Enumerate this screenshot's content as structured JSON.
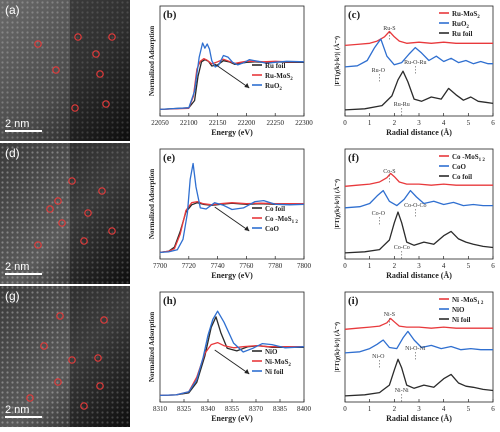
{
  "rows": [
    {
      "stem": {
        "label": "(a)",
        "scale": "2 nm"
      },
      "xanes": {
        "label": "(b)",
        "xlabel": "Energy (eV)",
        "ylabel": "Normalized Adsorption",
        "xticks": [
          "22050",
          "22100",
          "22150",
          "22200",
          "22250",
          "22300"
        ],
        "legend": [
          "Ru foil",
          "Ru-MoS",
          "RuO"
        ],
        "legend_sub": [
          "",
          "2",
          "2"
        ]
      },
      "exafs": {
        "label": "(c)",
        "xlabel": "Radial distance (Å)",
        "ylabel": "|FT(χ(k)·k³)| (Å⁻⁴)",
        "xticks": [
          "0",
          "1",
          "2",
          "3",
          "4",
          "5",
          "6"
        ],
        "legend": [
          "Ru-MoS",
          "RuO",
          "Ru foil"
        ],
        "legend_sub": [
          "2",
          "2",
          ""
        ],
        "annotations": [
          "Ru-S",
          "Ru-O",
          "Ru-O-Ru",
          "Ru-Ru"
        ]
      }
    },
    {
      "stem": {
        "label": "(d)",
        "scale": "2 nm"
      },
      "xanes": {
        "label": "(e)",
        "xlabel": "Energy (eV)",
        "ylabel": "Normalized Adsorption",
        "xticks": [
          "7700",
          "7720",
          "7740",
          "7760",
          "7780",
          "7800"
        ],
        "legend": [
          "Co foil",
          "Co -MoS",
          "CoO"
        ],
        "legend_sub": [
          "",
          "1  2",
          ""
        ]
      },
      "exafs": {
        "label": "(f)",
        "xlabel": "Radial distance (Å)",
        "ylabel": "|FT(χ(k)·k³)| (Å⁻⁴)",
        "xticks": [
          "0",
          "1",
          "2",
          "3",
          "4",
          "5",
          "6"
        ],
        "legend": [
          "Co -MoS",
          "CoO",
          "Co foil"
        ],
        "legend_sub": [
          "1  2",
          "",
          ""
        ],
        "annotations": [
          "Co-S",
          "Co-O",
          "Co-O-Co",
          "Co-Co"
        ]
      }
    },
    {
      "stem": {
        "label": "(g)",
        "scale": "2 nm"
      },
      "xanes": {
        "label": "(h)",
        "xlabel": "Energy (eV)",
        "ylabel": "Normalized Adsorption",
        "xticks": [
          "8310",
          "8325",
          "8340",
          "8355",
          "8370",
          "8385",
          "8400"
        ],
        "legend": [
          "NiO",
          "Ni-MoS",
          "Ni foil"
        ],
        "legend_sub": [
          "",
          "2",
          ""
        ]
      },
      "exafs": {
        "label": "(i)",
        "xlabel": "Radial distance (Å)",
        "ylabel": "|FT(χ(k)·k³)| (Å⁻⁴)",
        "xticks": [
          "0",
          "1",
          "2",
          "3",
          "4",
          "5",
          "6"
        ],
        "legend": [
          "Ni -MoS",
          "NiO",
          "Ni foil"
        ],
        "legend_sub": [
          "1  2",
          "",
          ""
        ],
        "annotations": [
          "Ni-S",
          "Ni-O",
          "Ni-O-Ni",
          "Ni-Ni"
        ]
      }
    }
  ],
  "colors": {
    "black": "#2b2b2b",
    "red": "#e8393c",
    "blue": "#2f6fd0",
    "dotred": "#e03a3a"
  },
  "chart_data": [
    {
      "type": "line",
      "panel": "b",
      "xlim": [
        22050,
        22300
      ],
      "series": [
        {
          "name": "Ru foil",
          "color": "black",
          "x": [
            22050,
            22100,
            22110,
            22116,
            22122,
            22128,
            22134,
            22140,
            22150,
            22160,
            22170,
            22180,
            22190,
            22200,
            22215,
            22230,
            22250,
            22270,
            22300
          ],
          "y": [
            0.05,
            0.08,
            0.22,
            0.68,
            0.96,
            1.0,
            0.97,
            0.88,
            0.9,
            0.98,
            0.96,
            0.91,
            0.93,
            0.95,
            0.96,
            0.95,
            0.96,
            0.95,
            0.95
          ]
        },
        {
          "name": "Ru-MoS2",
          "color": "red",
          "x": [
            22050,
            22100,
            22108,
            22114,
            22120,
            22126,
            22132,
            22140,
            22150,
            22160,
            22170,
            22180,
            22190,
            22200,
            22215,
            22230,
            22250,
            22270,
            22300
          ],
          "y": [
            0.05,
            0.07,
            0.3,
            0.82,
            0.97,
            1.02,
            0.99,
            0.92,
            0.96,
            1.01,
            0.97,
            0.93,
            0.95,
            0.97,
            0.97,
            0.96,
            0.97,
            0.96,
            0.96
          ]
        },
        {
          "name": "RuO2",
          "color": "blue",
          "x": [
            22050,
            22100,
            22110,
            22118,
            22124,
            22128,
            22132,
            22136,
            22140,
            22146,
            22152,
            22160,
            22168,
            22176,
            22185,
            22195,
            22205,
            22220,
            22235,
            22250,
            22270,
            22300
          ],
          "y": [
            0.05,
            0.08,
            0.4,
            1.05,
            1.32,
            1.22,
            1.3,
            1.2,
            0.98,
            0.86,
            0.9,
            1.08,
            1.05,
            0.95,
            0.9,
            0.94,
            1.0,
            0.97,
            0.93,
            0.95,
            0.97,
            0.96
          ]
        }
      ]
    },
    {
      "type": "line",
      "panel": "c",
      "xlim": [
        0,
        6
      ],
      "series": [
        {
          "name": "Ru-MoS2",
          "color": "red",
          "x": [
            0,
            0.5,
            1.0,
            1.3,
            1.6,
            1.8,
            2.0,
            2.2,
            2.5,
            3.0,
            3.5,
            4.0,
            4.5,
            5.0,
            5.5,
            6.0
          ],
          "y": [
            0.62,
            0.63,
            0.64,
            0.66,
            0.7,
            0.75,
            0.7,
            0.66,
            0.64,
            0.65,
            0.64,
            0.65,
            0.64,
            0.64,
            0.64,
            0.64
          ]
        },
        {
          "name": "RuO2",
          "color": "blue",
          "x": [
            0,
            0.5,
            0.9,
            1.2,
            1.45,
            1.7,
            2.0,
            2.3,
            2.6,
            2.85,
            3.1,
            3.4,
            3.7,
            4.0,
            4.3,
            4.6,
            4.9,
            5.2,
            5.5,
            5.8,
            6.0
          ],
          "y": [
            0.42,
            0.43,
            0.48,
            0.6,
            0.68,
            0.52,
            0.44,
            0.46,
            0.54,
            0.6,
            0.55,
            0.48,
            0.52,
            0.47,
            0.5,
            0.46,
            0.48,
            0.45,
            0.47,
            0.45,
            0.45
          ]
        },
        {
          "name": "Ru foil",
          "color": "black",
          "x": [
            0,
            0.8,
            1.5,
            1.9,
            2.15,
            2.35,
            2.55,
            2.8,
            3.1,
            3.5,
            3.9,
            4.2,
            4.5,
            4.8,
            5.1,
            5.4,
            5.7,
            6.0
          ],
          "y": [
            0.02,
            0.03,
            0.06,
            0.15,
            0.3,
            0.38,
            0.28,
            0.12,
            0.1,
            0.14,
            0.12,
            0.22,
            0.16,
            0.11,
            0.14,
            0.1,
            0.09,
            0.08
          ]
        }
      ]
    },
    {
      "type": "line",
      "panel": "e",
      "xlim": [
        7700,
        7800
      ],
      "series": [
        {
          "name": "Co foil",
          "color": "black",
          "x": [
            7700,
            7706,
            7710,
            7714,
            7718,
            7722,
            7726,
            7730,
            7736,
            7742,
            7750,
            7760,
            7770,
            7780,
            7790,
            7800
          ],
          "y": [
            0.05,
            0.07,
            0.15,
            0.45,
            0.82,
            0.96,
            1.0,
            0.97,
            0.95,
            0.97,
            0.99,
            0.97,
            0.98,
            0.97,
            0.97,
            0.97
          ]
        },
        {
          "name": "Co1-MoS2",
          "color": "red",
          "x": [
            7700,
            7706,
            7710,
            7714,
            7718,
            7722,
            7726,
            7730,
            7736,
            7742,
            7750,
            7760,
            7770,
            7780,
            7790,
            7800
          ],
          "y": [
            0.05,
            0.07,
            0.12,
            0.4,
            0.85,
            1.0,
            1.02,
            0.98,
            0.96,
            0.98,
            1.0,
            0.98,
            0.99,
            0.98,
            0.98,
            0.98
          ]
        },
        {
          "name": "CoO",
          "color": "blue",
          "x": [
            7700,
            7706,
            7712,
            7716,
            7719,
            7721,
            7723,
            7725,
            7728,
            7732,
            7738,
            7744,
            7750,
            7758,
            7766,
            7772,
            7780,
            7790,
            7800
          ],
          "y": [
            0.05,
            0.06,
            0.1,
            0.3,
            0.8,
            1.45,
            1.75,
            1.3,
            0.9,
            0.88,
            1.0,
            0.95,
            0.87,
            0.9,
            1.02,
            1.04,
            0.97,
            0.96,
            0.97
          ]
        }
      ]
    },
    {
      "type": "line",
      "panel": "f",
      "xlim": [
        0,
        6
      ],
      "series": [
        {
          "name": "Co1-MoS2",
          "color": "red",
          "x": [
            0,
            0.5,
            1.0,
            1.4,
            1.7,
            1.85,
            2.0,
            2.2,
            2.5,
            3.0,
            3.5,
            4.0,
            4.5,
            5.0,
            5.5,
            6.0
          ],
          "y": [
            0.64,
            0.65,
            0.66,
            0.68,
            0.72,
            0.76,
            0.73,
            0.68,
            0.66,
            0.66,
            0.65,
            0.66,
            0.65,
            0.65,
            0.65,
            0.65
          ]
        },
        {
          "name": "CoO",
          "color": "blue",
          "x": [
            0,
            0.6,
            1.0,
            1.3,
            1.55,
            1.8,
            2.1,
            2.4,
            2.65,
            2.9,
            3.2,
            3.6,
            4.0,
            4.4,
            4.8,
            5.2,
            5.6,
            6.0
          ],
          "y": [
            0.44,
            0.45,
            0.48,
            0.55,
            0.6,
            0.5,
            0.46,
            0.52,
            0.6,
            0.54,
            0.48,
            0.5,
            0.47,
            0.49,
            0.46,
            0.47,
            0.46,
            0.46
          ]
        },
        {
          "name": "Co foil",
          "color": "black",
          "x": [
            0,
            0.8,
            1.4,
            1.8,
            2.0,
            2.15,
            2.3,
            2.5,
            2.8,
            3.2,
            3.6,
            4.0,
            4.3,
            4.6,
            4.9,
            5.2,
            5.6,
            6.0
          ],
          "y": [
            0.02,
            0.03,
            0.05,
            0.14,
            0.3,
            0.4,
            0.3,
            0.12,
            0.09,
            0.12,
            0.1,
            0.18,
            0.22,
            0.15,
            0.12,
            0.1,
            0.08,
            0.07
          ]
        }
      ]
    },
    {
      "type": "line",
      "panel": "h",
      "xlim": [
        8310,
        8400
      ],
      "series": [
        {
          "name": "NiO",
          "color": "black",
          "x": [
            8310,
            8320,
            8328,
            8333,
            8338,
            8342,
            8345,
            8348,
            8352,
            8358,
            8365,
            8372,
            8380,
            8390,
            8400
          ],
          "y": [
            0.05,
            0.06,
            0.1,
            0.3,
            0.8,
            1.35,
            1.55,
            1.25,
            0.95,
            0.9,
            0.98,
            1.0,
            0.97,
            0.97,
            0.97
          ]
        },
        {
          "name": "Ni-MoS2",
          "color": "red",
          "x": [
            8310,
            8320,
            8328,
            8333,
            8338,
            8342,
            8346,
            8350,
            8356,
            8362,
            8370,
            8378,
            8386,
            8394,
            8400
          ],
          "y": [
            0.05,
            0.06,
            0.12,
            0.4,
            0.85,
            1.02,
            1.06,
            1.0,
            0.96,
            0.98,
            1.0,
            0.98,
            0.98,
            0.98,
            0.98
          ]
        },
        {
          "name": "Ni foil",
          "color": "blue",
          "x": [
            8310,
            8320,
            8328,
            8333,
            8337,
            8340,
            8343,
            8346,
            8350,
            8356,
            8362,
            8368,
            8374,
            8380,
            8388,
            8394,
            8400
          ],
          "y": [
            0.05,
            0.06,
            0.12,
            0.35,
            0.78,
            1.2,
            1.5,
            1.66,
            1.45,
            1.05,
            0.88,
            0.95,
            1.04,
            1.02,
            0.96,
            0.97,
            0.98
          ]
        }
      ]
    },
    {
      "type": "line",
      "panel": "i",
      "xlim": [
        0,
        6
      ],
      "series": [
        {
          "name": "Ni1-MoS2",
          "color": "red",
          "x": [
            0,
            0.5,
            1.0,
            1.4,
            1.7,
            1.85,
            2.0,
            2.2,
            2.5,
            3.0,
            3.5,
            4.0,
            4.5,
            5.0,
            5.5,
            6.0
          ],
          "y": [
            0.64,
            0.65,
            0.66,
            0.67,
            0.7,
            0.74,
            0.71,
            0.67,
            0.66,
            0.66,
            0.65,
            0.66,
            0.65,
            0.65,
            0.65,
            0.65
          ]
        },
        {
          "name": "NiO",
          "color": "blue",
          "x": [
            0,
            0.6,
            1.0,
            1.3,
            1.55,
            1.8,
            2.1,
            2.35,
            2.55,
            2.8,
            3.1,
            3.5,
            3.9,
            4.3,
            4.7,
            5.1,
            5.5,
            6.0
          ],
          "y": [
            0.42,
            0.43,
            0.46,
            0.5,
            0.54,
            0.47,
            0.46,
            0.56,
            0.62,
            0.54,
            0.47,
            0.49,
            0.46,
            0.48,
            0.45,
            0.46,
            0.45,
            0.45
          ]
        },
        {
          "name": "Ni foil",
          "color": "black",
          "x": [
            0,
            0.8,
            1.4,
            1.8,
            2.0,
            2.15,
            2.3,
            2.5,
            2.8,
            3.2,
            3.6,
            4.0,
            4.3,
            4.6,
            4.9,
            5.2,
            5.6,
            6.0
          ],
          "y": [
            0.02,
            0.03,
            0.05,
            0.12,
            0.26,
            0.36,
            0.28,
            0.12,
            0.09,
            0.12,
            0.1,
            0.18,
            0.22,
            0.14,
            0.11,
            0.1,
            0.08,
            0.07
          ]
        }
      ]
    }
  ]
}
